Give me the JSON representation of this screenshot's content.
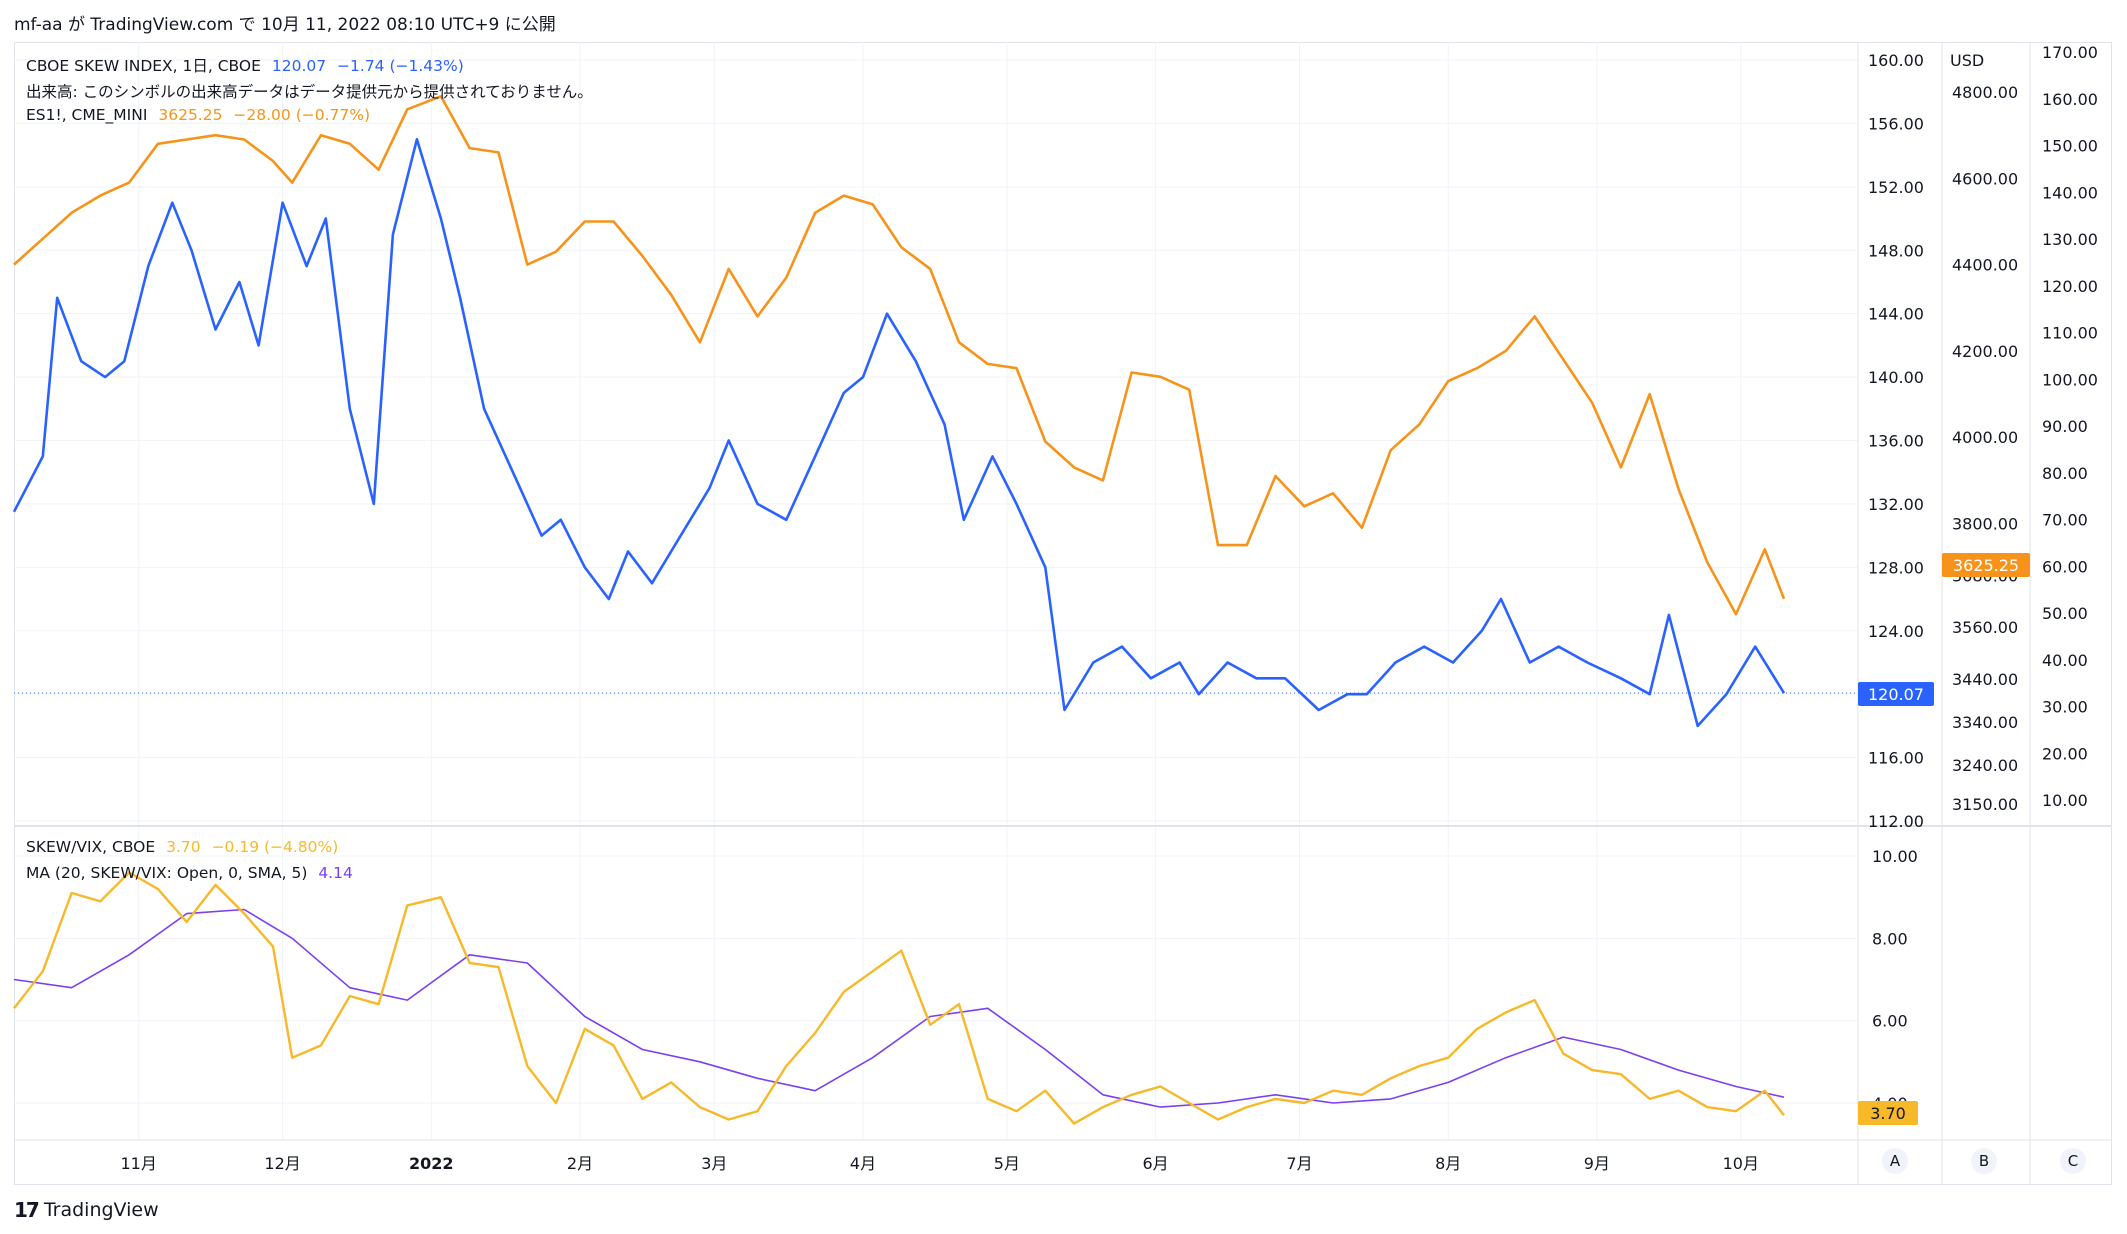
{
  "header": {
    "user": "mf-aa",
    "text": "が TradingView.com で 10月 11, 2022 08:10 UTC+9 に公開"
  },
  "legend_main": {
    "series1_name": "CBOE SKEW INDEX, 1日, CBOE",
    "series1_value": "120.07",
    "series1_change": "−1.74 (−1.43%)",
    "volume_note": "出来高: このシンボルの出来高データはデータ提供元から提供されておりません。",
    "series2_name": "ES1!, CME_MINI",
    "series2_value": "3625.25",
    "series2_change": "−28.00 (−0.77%)"
  },
  "legend_sub": {
    "series_name": "SKEW/VIX, CBOE",
    "series_value": "3.70",
    "series_change": "−0.19 (−4.80%)",
    "ma_name": "MA (20, SKEW/VIX: Open, 0, SMA, 5)",
    "ma_value": "4.14"
  },
  "axes": {
    "usd_label": "USD",
    "axis_a_ticks": [
      "160.00",
      "156.00",
      "152.00",
      "148.00",
      "144.00",
      "140.00",
      "136.00",
      "132.00",
      "128.00",
      "124.00",
      "120.00",
      "116.00",
      "112.00"
    ],
    "axis_usd_ticks": [
      "4800.00",
      "4600.00",
      "4400.00",
      "4200.00",
      "4000.00",
      "3800.00",
      "3680.00",
      "3560.00",
      "3440.00",
      "3340.00",
      "3240.00",
      "3150.00"
    ],
    "axis_c_ticks": [
      "170.00",
      "160.00",
      "150.00",
      "140.00",
      "130.00",
      "120.00",
      "110.00",
      "100.00",
      "90.00",
      "80.00",
      "70.00",
      "60.00",
      "50.00",
      "40.00",
      "30.00",
      "20.00",
      "10.00"
    ],
    "sub_ticks": [
      "10.00",
      "8.00",
      "6.00",
      "4.00"
    ],
    "x_ticks": [
      "11月",
      "12月",
      "2022",
      "2月",
      "3月",
      "4月",
      "5月",
      "6月",
      "7月",
      "8月",
      "9月",
      "10月"
    ],
    "scale_buttons": [
      "A",
      "B",
      "C"
    ]
  },
  "price_labels": {
    "skew": "120.07",
    "es": "3625.25",
    "ratio": "3.70"
  },
  "colors": {
    "skew": "#2962ff",
    "es": "#f7931a",
    "ratio": "#f7b82a",
    "ma": "#7b3ff2"
  },
  "footer": {
    "brand": "TradingView",
    "logo": "17"
  },
  "chart_data": [
    {
      "type": "line",
      "x_range": [
        "2021-10-06",
        "2022-10-10"
      ],
      "series": [
        {
          "name": "CBOE SKEW INDEX",
          "x": [
            "2021-10-06",
            "2021-10-12",
            "2021-10-15",
            "2021-10-20",
            "2021-10-25",
            "2021-10-29",
            "2021-11-03",
            "2021-11-08",
            "2021-11-12",
            "2021-11-17",
            "2021-11-22",
            "2021-11-26",
            "2021-12-01",
            "2021-12-06",
            "2021-12-10",
            "2021-12-15",
            "2021-12-20",
            "2021-12-24",
            "2021-12-29",
            "2022-01-03",
            "2022-01-07",
            "2022-01-12",
            "2022-01-18",
            "2022-01-24",
            "2022-01-28",
            "2022-02-02",
            "2022-02-07",
            "2022-02-11",
            "2022-02-16",
            "2022-02-22",
            "2022-02-28",
            "2022-03-04",
            "2022-03-10",
            "2022-03-16",
            "2022-03-22",
            "2022-03-28",
            "2022-04-01",
            "2022-04-06",
            "2022-04-12",
            "2022-04-18",
            "2022-04-22",
            "2022-04-28",
            "2022-05-03",
            "2022-05-09",
            "2022-05-13",
            "2022-05-19",
            "2022-05-25",
            "2022-05-31",
            "2022-06-06",
            "2022-06-10",
            "2022-06-16",
            "2022-06-22",
            "2022-06-28",
            "2022-07-05",
            "2022-07-11",
            "2022-07-15",
            "2022-07-21",
            "2022-07-27",
            "2022-08-02",
            "2022-08-08",
            "2022-08-12",
            "2022-08-18",
            "2022-08-24",
            "2022-08-30",
            "2022-09-06",
            "2022-09-12",
            "2022-09-16",
            "2022-09-22",
            "2022-09-28",
            "2022-10-04",
            "2022-10-10"
          ],
          "values": [
            131.5,
            135,
            145,
            141,
            140,
            141,
            147,
            151,
            148,
            143,
            146,
            142,
            151,
            147,
            150,
            138,
            132,
            149,
            155,
            150,
            145,
            138,
            134,
            130,
            131,
            128,
            126,
            129,
            127,
            130,
            133,
            136,
            132,
            131,
            135,
            139,
            140,
            144,
            141,
            137,
            131,
            135,
            132,
            128,
            119,
            122,
            123,
            121,
            122,
            120,
            122,
            121,
            121,
            119,
            120,
            120,
            122,
            123,
            122,
            124,
            126,
            122,
            123,
            122,
            121,
            120,
            125,
            118,
            120,
            123,
            120.07
          ]
        },
        {
          "name": "ES1!",
          "x": [
            "2021-10-06",
            "2021-10-12",
            "2021-10-18",
            "2021-10-24",
            "2021-10-30",
            "2021-11-05",
            "2021-11-11",
            "2021-11-17",
            "2021-11-23",
            "2021-11-29",
            "2021-12-03",
            "2021-12-09",
            "2021-12-15",
            "2021-12-21",
            "2021-12-27",
            "2022-01-03",
            "2022-01-09",
            "2022-01-15",
            "2022-01-21",
            "2022-01-27",
            "2022-02-02",
            "2022-02-08",
            "2022-02-14",
            "2022-02-20",
            "2022-02-26",
            "2022-03-04",
            "2022-03-10",
            "2022-03-16",
            "2022-03-22",
            "2022-03-28",
            "2022-04-03",
            "2022-04-09",
            "2022-04-15",
            "2022-04-21",
            "2022-04-27",
            "2022-05-03",
            "2022-05-09",
            "2022-05-15",
            "2022-05-21",
            "2022-05-27",
            "2022-06-02",
            "2022-06-08",
            "2022-06-14",
            "2022-06-20",
            "2022-06-26",
            "2022-07-02",
            "2022-07-08",
            "2022-07-14",
            "2022-07-20",
            "2022-07-26",
            "2022-08-01",
            "2022-08-07",
            "2022-08-13",
            "2022-08-19",
            "2022-08-25",
            "2022-08-31",
            "2022-09-06",
            "2022-09-12",
            "2022-09-18",
            "2022-09-24",
            "2022-09-30",
            "2022-10-06",
            "2022-10-10"
          ],
          "values": [
            4400,
            4460,
            4520,
            4560,
            4590,
            4680,
            4690,
            4700,
            4690,
            4640,
            4590,
            4700,
            4680,
            4620,
            4760,
            4790,
            4670,
            4660,
            4400,
            4430,
            4500,
            4500,
            4420,
            4330,
            4220,
            4390,
            4280,
            4370,
            4520,
            4560,
            4540,
            4440,
            4390,
            4220,
            4170,
            4160,
            3990,
            3930,
            3900,
            4150,
            4140,
            4110,
            3750,
            3750,
            3910,
            3840,
            3870,
            3790,
            3970,
            4030,
            4130,
            4160,
            4200,
            4280,
            4180,
            4080,
            3930,
            4100,
            3880,
            3710,
            3590,
            3740,
            3625.25
          ]
        }
      ],
      "axis_a_range": [
        112,
        160
      ],
      "axis_usd_range": [
        3150,
        4800
      ],
      "legend_position": "top-left"
    },
    {
      "type": "line",
      "series": [
        {
          "name": "SKEW/VIX",
          "x": [
            "2021-10-06",
            "2021-10-12",
            "2021-10-18",
            "2021-10-24",
            "2021-10-30",
            "2021-11-05",
            "2021-11-11",
            "2021-11-17",
            "2021-11-23",
            "2021-11-29",
            "2021-12-03",
            "2021-12-09",
            "2021-12-15",
            "2021-12-21",
            "2021-12-27",
            "2022-01-03",
            "2022-01-09",
            "2022-01-15",
            "2022-01-21",
            "2022-01-27",
            "2022-02-02",
            "2022-02-08",
            "2022-02-14",
            "2022-02-20",
            "2022-02-26",
            "2022-03-04",
            "2022-03-10",
            "2022-03-16",
            "2022-03-22",
            "2022-03-28",
            "2022-04-03",
            "2022-04-09",
            "2022-04-15",
            "2022-04-21",
            "2022-04-27",
            "2022-05-03",
            "2022-05-09",
            "2022-05-15",
            "2022-05-21",
            "2022-05-27",
            "2022-06-02",
            "2022-06-08",
            "2022-06-14",
            "2022-06-20",
            "2022-06-26",
            "2022-07-02",
            "2022-07-08",
            "2022-07-14",
            "2022-07-20",
            "2022-07-26",
            "2022-08-01",
            "2022-08-07",
            "2022-08-13",
            "2022-08-19",
            "2022-08-25",
            "2022-08-31",
            "2022-09-06",
            "2022-09-12",
            "2022-09-18",
            "2022-09-24",
            "2022-09-30",
            "2022-10-06",
            "2022-10-10"
          ],
          "values": [
            6.3,
            7.2,
            9.1,
            8.9,
            9.6,
            9.2,
            8.4,
            9.3,
            8.6,
            7.8,
            5.1,
            5.4,
            6.6,
            6.4,
            8.8,
            9.0,
            7.4,
            7.3,
            4.9,
            4.0,
            5.8,
            5.4,
            4.1,
            4.5,
            3.9,
            3.6,
            3.8,
            4.9,
            5.7,
            6.7,
            7.2,
            7.7,
            5.9,
            6.4,
            4.1,
            3.8,
            4.3,
            3.5,
            3.9,
            4.2,
            4.4,
            4.0,
            3.6,
            3.9,
            4.1,
            4.0,
            4.3,
            4.2,
            4.6,
            4.9,
            5.1,
            5.8,
            6.2,
            6.5,
            5.2,
            4.8,
            4.7,
            4.1,
            4.3,
            3.9,
            3.8,
            4.3,
            3.7
          ]
        },
        {
          "name": "MA (20, SKEW/VIX: Open, 0, SMA, 5)",
          "x": [
            "2021-10-06",
            "2021-10-18",
            "2021-10-30",
            "2021-11-11",
            "2021-11-23",
            "2021-12-03",
            "2021-12-15",
            "2021-12-27",
            "2022-01-09",
            "2022-01-21",
            "2022-02-02",
            "2022-02-14",
            "2022-02-26",
            "2022-03-10",
            "2022-03-22",
            "2022-04-03",
            "2022-04-15",
            "2022-04-27",
            "2022-05-09",
            "2022-05-21",
            "2022-06-02",
            "2022-06-14",
            "2022-06-26",
            "2022-07-08",
            "2022-07-20",
            "2022-08-01",
            "2022-08-13",
            "2022-08-25",
            "2022-09-06",
            "2022-09-18",
            "2022-09-30",
            "2022-10-10"
          ],
          "values": [
            7.0,
            6.8,
            7.6,
            8.6,
            8.7,
            8.0,
            6.8,
            6.5,
            7.6,
            7.4,
            6.1,
            5.3,
            5.0,
            4.6,
            4.3,
            5.1,
            6.1,
            6.3,
            5.3,
            4.2,
            3.9,
            4.0,
            4.2,
            4.0,
            4.1,
            4.5,
            5.1,
            5.6,
            5.3,
            4.8,
            4.4,
            4.14
          ]
        }
      ],
      "yrange": [
        3.5,
        10.5
      ],
      "legend_position": "top-left"
    }
  ]
}
